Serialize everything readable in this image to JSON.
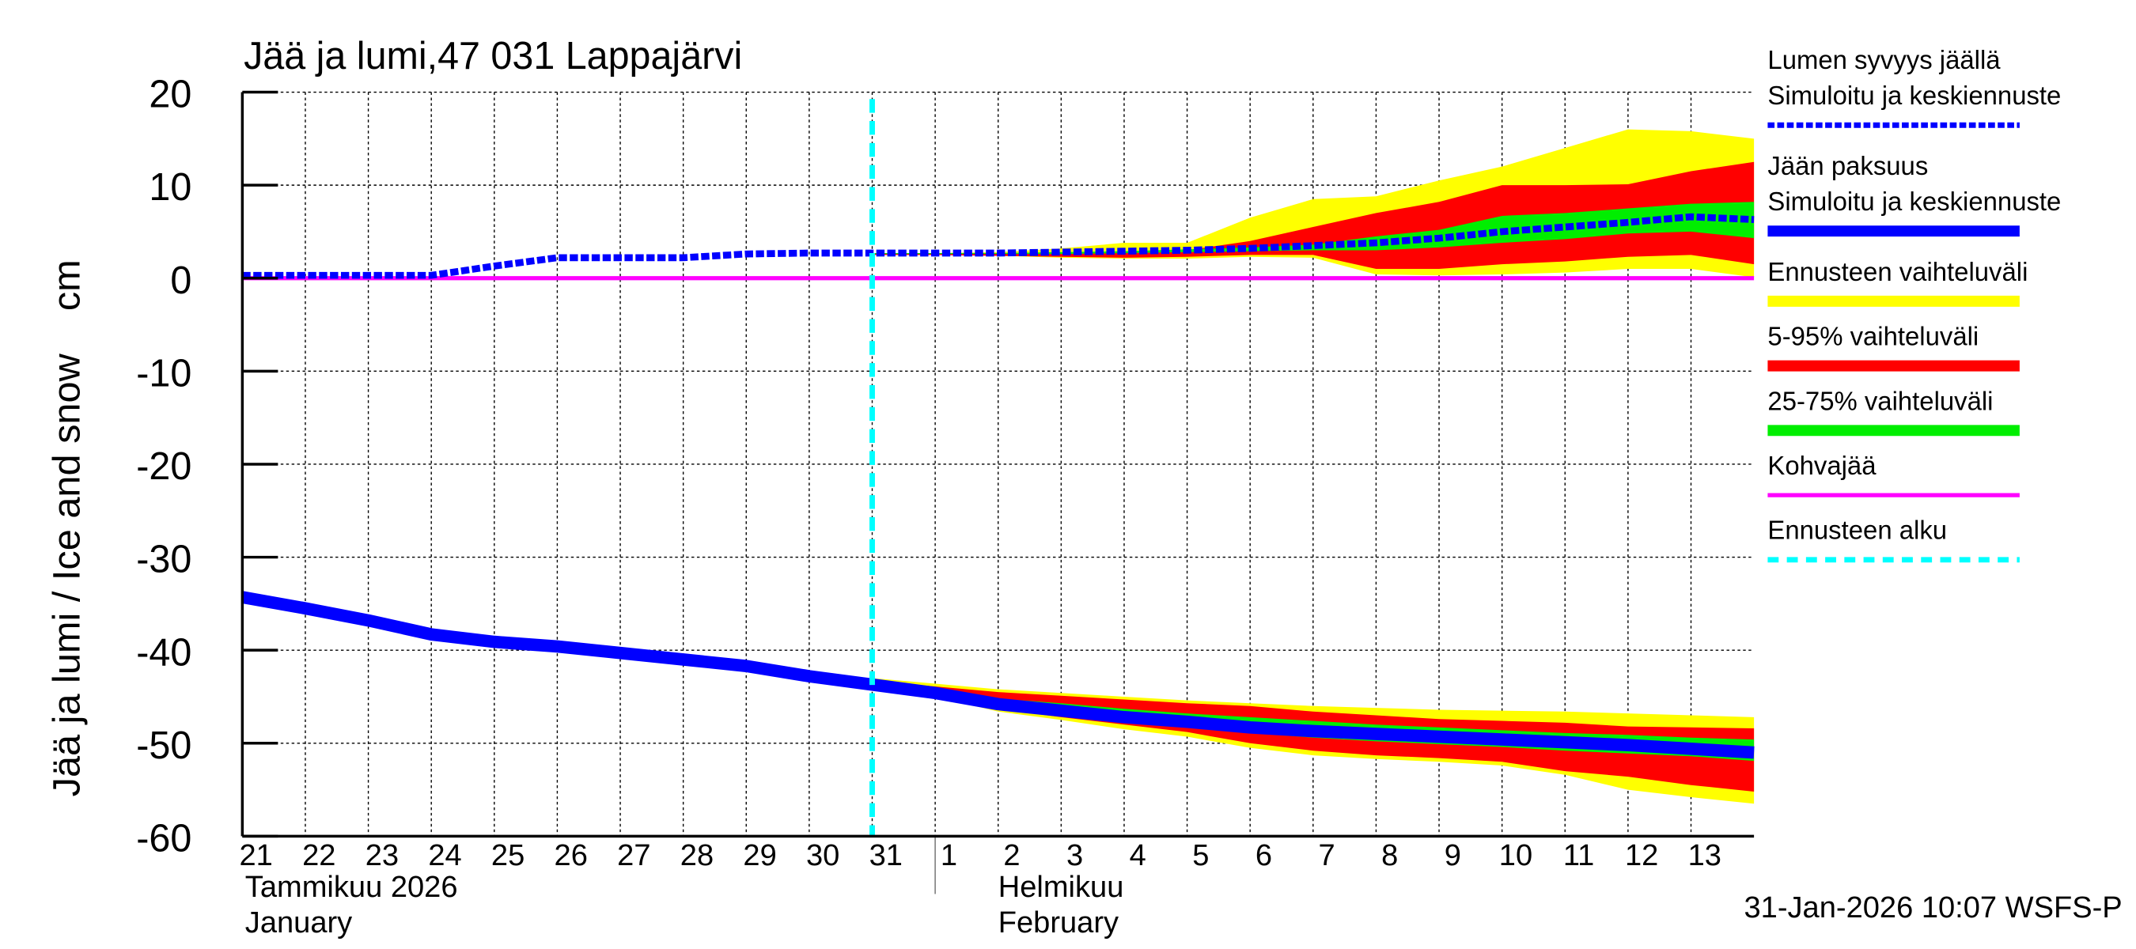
{
  "chart_data": {
    "type": "area",
    "title": "Jää ja lumi,47 031 Lappajärvi",
    "ylabel": "Jää ja lumi / Ice and snow    cm",
    "ylim": [
      -60,
      20
    ],
    "yticks": [
      "20",
      "10",
      "0",
      "-10",
      "-20",
      "-30",
      "-40",
      "-50",
      "-60"
    ],
    "grid": true,
    "legend_position": "right",
    "x_dates": [
      "2026-01-21",
      "2026-01-22",
      "2026-01-23",
      "2026-01-24",
      "2026-01-25",
      "2026-01-26",
      "2026-01-27",
      "2026-01-28",
      "2026-01-29",
      "2026-01-30",
      "2026-01-31",
      "2026-02-01",
      "2026-02-02",
      "2026-02-03",
      "2026-02-04",
      "2026-02-05",
      "2026-02-06",
      "2026-02-07",
      "2026-02-08",
      "2026-02-09",
      "2026-02-10",
      "2026-02-11",
      "2026-02-12",
      "2026-02-13",
      "2026-02-14"
    ],
    "xtick_labels": [
      "21",
      "22",
      "23",
      "24",
      "25",
      "26",
      "27",
      "28",
      "29",
      "30",
      "31",
      "1",
      "2",
      "3",
      "4",
      "5",
      "6",
      "7",
      "8",
      "9",
      "10",
      "11",
      "12",
      "13"
    ],
    "month_labels": [
      {
        "fi": "Tammikuu  2026",
        "en": "January"
      },
      {
        "fi": "Helmikuu",
        "en": "February"
      }
    ],
    "forecast_start": "2026-01-31",
    "forecast_dates": [
      "2026-01-31",
      "2026-02-01",
      "2026-02-02",
      "2026-02-03",
      "2026-02-04",
      "2026-02-05",
      "2026-02-06",
      "2026-02-07",
      "2026-02-08",
      "2026-02-09",
      "2026-02-10",
      "2026-02-11",
      "2026-02-12",
      "2026-02-13",
      "2026-02-14"
    ],
    "series": [
      {
        "name": "Lumen syvyys jäällä — Simuloitu ja keskiennuste",
        "color": "#0000ff",
        "style": "dashed",
        "values": [
          0.3,
          0.3,
          0.3,
          0.3,
          1.3,
          2.2,
          2.2,
          2.2,
          2.6,
          2.7,
          2.7,
          2.7,
          2.7,
          2.8,
          2.9,
          3.0,
          3.2,
          3.5,
          3.8,
          4.3,
          5.0,
          5.5,
          6.0,
          6.6,
          6.3
        ]
      },
      {
        "name": "Jään paksuus — Simuloitu ja keskiennuste",
        "color": "#0000ff",
        "style": "solid",
        "values": [
          -34.3,
          -35.5,
          -36.8,
          -38.3,
          -39.1,
          -39.6,
          -40.3,
          -41.0,
          -41.7,
          -42.8,
          -43.7,
          -44.6,
          -45.8,
          -46.5,
          -47.2,
          -47.7,
          -48.3,
          -48.7,
          -49.0,
          -49.3,
          -49.6,
          -49.9,
          -50.2,
          -50.6,
          -51.0
        ]
      },
      {
        "name": "Kohvajää",
        "color": "#ff00ff",
        "style": "solid",
        "values": [
          0,
          0,
          0,
          0,
          0,
          0,
          0,
          0,
          0,
          0,
          0,
          0,
          0,
          0,
          0,
          0,
          0,
          0,
          0,
          0,
          0,
          0,
          0,
          0,
          0
        ]
      }
    ],
    "bands": [
      {
        "name": "Ennusteen vaihteluväli",
        "color": "#ffff00",
        "target": "snow",
        "lower": [
          2.5,
          2.5,
          2.4,
          2.2,
          2.1,
          2.1,
          2.3,
          2.2,
          0.4,
          0.3,
          0.4,
          0.6,
          1.0,
          1.0,
          0.1
        ],
        "upper": [
          2.7,
          2.7,
          2.8,
          3.2,
          3.8,
          3.8,
          6.5,
          8.5,
          8.8,
          10.5,
          12,
          14,
          16,
          15.8,
          15
        ]
      },
      {
        "name": "5-95% vaihteluväli",
        "color": "#ff0000",
        "target": "snow",
        "lower": [
          2.5,
          2.5,
          2.4,
          2.3,
          2.2,
          2.3,
          2.5,
          2.5,
          1.0,
          1.0,
          1.5,
          1.8,
          2.3,
          2.5,
          1.5
        ],
        "upper": [
          2.7,
          2.7,
          2.7,
          2.7,
          2.8,
          3.0,
          4.0,
          5.5,
          7.0,
          8.2,
          10,
          10,
          10.1,
          11.5,
          12.5
        ]
      },
      {
        "name": "25-75% vaihteluväli",
        "color": "#00ee00",
        "target": "snow",
        "lower": [
          2.6,
          2.6,
          2.6,
          2.6,
          2.7,
          2.8,
          2.9,
          3.0,
          3.0,
          3.3,
          3.8,
          4.2,
          4.8,
          5.0,
          4.3
        ],
        "upper": [
          2.7,
          2.7,
          2.7,
          2.8,
          2.9,
          3.1,
          3.3,
          3.6,
          4.5,
          5.2,
          6.7,
          7.0,
          7.5,
          8.0,
          8.2
        ]
      },
      {
        "name": "Ennusteen vaihteluväli",
        "color": "#ffff00",
        "target": "ice",
        "lower": [
          -43.7,
          -45.0,
          -46.6,
          -47.5,
          -48.5,
          -49.3,
          -50.5,
          -51.3,
          -51.7,
          -52.0,
          -52.4,
          -53.4,
          -55.0,
          -55.8,
          -56.5
        ],
        "upper": [
          -43.0,
          -43.6,
          -44.2,
          -44.6,
          -45.0,
          -45.4,
          -45.7,
          -46.0,
          -46.2,
          -46.4,
          -46.5,
          -46.6,
          -46.8,
          -47.0,
          -47.2
        ]
      },
      {
        "name": "5-95% vaihteluväli",
        "color": "#ff0000",
        "target": "ice",
        "lower": [
          -43.7,
          -44.9,
          -46.3,
          -47.2,
          -48.0,
          -48.8,
          -50.0,
          -50.8,
          -51.3,
          -51.6,
          -52.0,
          -53.0,
          -53.6,
          -54.5,
          -55.2
        ],
        "upper": [
          -43.3,
          -43.9,
          -44.5,
          -44.9,
          -45.3,
          -45.7,
          -46.0,
          -46.6,
          -47.0,
          -47.4,
          -47.6,
          -47.8,
          -48.2,
          -48.3,
          -48.4
        ]
      },
      {
        "name": "25-75% vaihteluväli",
        "color": "#00ee00",
        "target": "ice",
        "lower": [
          -43.7,
          -44.7,
          -46.0,
          -46.9,
          -47.6,
          -48.3,
          -48.9,
          -49.4,
          -49.8,
          -50.1,
          -50.4,
          -50.8,
          -51.1,
          -51.4,
          -51.9
        ],
        "upper": [
          -43.5,
          -44.3,
          -45.2,
          -45.7,
          -46.3,
          -46.8,
          -47.2,
          -47.6,
          -48.0,
          -48.3,
          -48.6,
          -48.9,
          -49.1,
          -49.4,
          -49.6
        ]
      }
    ],
    "legend": [
      {
        "line1": "Lumen syvyys jäällä",
        "line2": "Simuloitu ja keskiennuste",
        "color": "#0000ff",
        "style": "dashed"
      },
      {
        "line1": "Jään paksuus",
        "line2": "Simuloitu ja keskiennuste",
        "color": "#0000ff",
        "style": "solid"
      },
      {
        "line1": "Ennusteen vaihteluväli",
        "color": "#ffff00",
        "style": "solid"
      },
      {
        "line1": "5-95% vaihteluväli",
        "color": "#ff0000",
        "style": "solid"
      },
      {
        "line1": "25-75% vaihteluväli",
        "color": "#00ee00",
        "style": "solid"
      },
      {
        "line1": "Kohvajää",
        "color": "#ff00ff",
        "style": "solid"
      },
      {
        "line1": "Ennusteen alku",
        "color": "#00ffff",
        "style": "dashed"
      }
    ],
    "footer": "31-Jan-2026 10:07 WSFS-P"
  }
}
